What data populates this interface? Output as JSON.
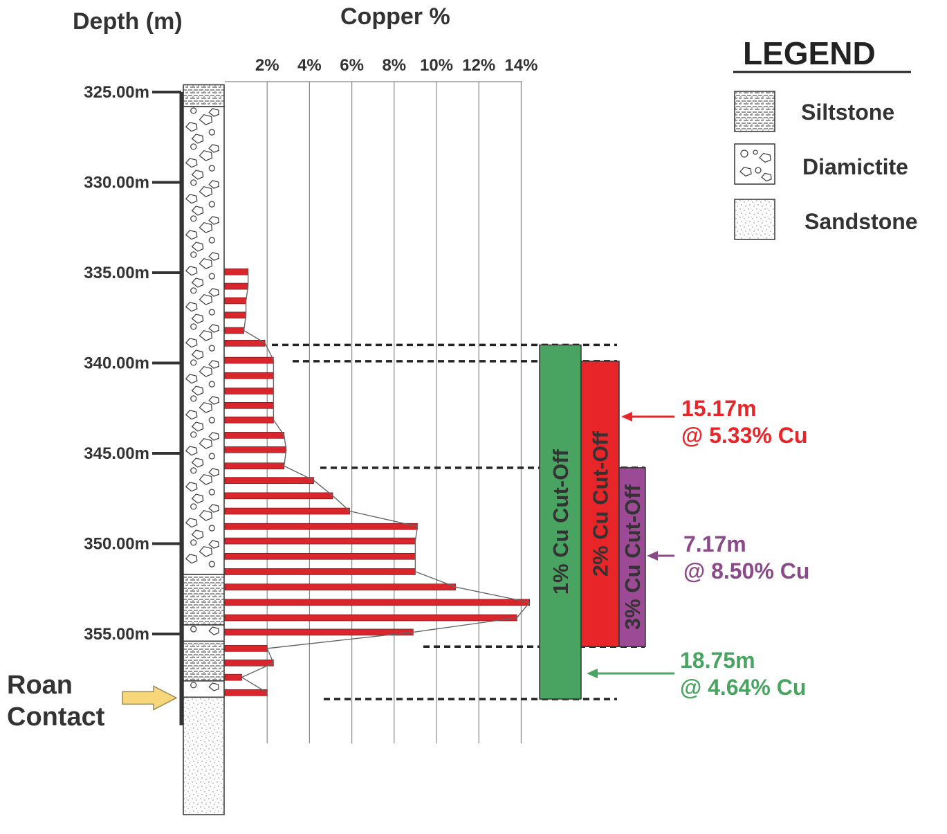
{
  "texts": {
    "depth_title": "Depth (m)",
    "copper_title": "Copper %",
    "legend_title": "LEGEND",
    "roan_line1": "Roan",
    "roan_line2": "Contact"
  },
  "chart_data": {
    "type": "bar",
    "orientation": "horizontal",
    "title": "",
    "xlabel": "Copper %",
    "ylabel": "Depth (m)",
    "xlim": [
      0,
      14
    ],
    "x_ticks": [
      "2%",
      "4%",
      "6%",
      "8%",
      "10%",
      "12%",
      "14%"
    ],
    "ylim": [
      325,
      365
    ],
    "y_ticks": [
      "325.00m",
      "330.00m",
      "335.00m",
      "340.00m",
      "345.00m",
      "350.00m",
      "355.00m"
    ],
    "y_tick_values": [
      325,
      330,
      335,
      340,
      345,
      350,
      355
    ],
    "series": [
      {
        "values": [
          {
            "depth": 334.95,
            "cu": 1.1
          },
          {
            "depth": 335.75,
            "cu": 1.1
          },
          {
            "depth": 336.55,
            "cu": 1.0
          },
          {
            "depth": 337.35,
            "cu": 1.0
          },
          {
            "depth": 338.2,
            "cu": 0.9
          },
          {
            "depth": 338.9,
            "cu": 1.9
          },
          {
            "depth": 339.85,
            "cu": 2.3
          },
          {
            "depth": 340.7,
            "cu": 2.3
          },
          {
            "depth": 341.55,
            "cu": 2.3
          },
          {
            "depth": 342.35,
            "cu": 2.3
          },
          {
            "depth": 343.15,
            "cu": 2.3
          },
          {
            "depth": 344.0,
            "cu": 2.8
          },
          {
            "depth": 344.8,
            "cu": 2.9
          },
          {
            "depth": 345.7,
            "cu": 2.8
          },
          {
            "depth": 346.5,
            "cu": 4.2
          },
          {
            "depth": 347.35,
            "cu": 5.1
          },
          {
            "depth": 348.2,
            "cu": 5.9
          },
          {
            "depth": 349.05,
            "cu": 9.1
          },
          {
            "depth": 349.85,
            "cu": 9.0
          },
          {
            "depth": 350.7,
            "cu": 9.0
          },
          {
            "depth": 351.55,
            "cu": 9.0
          },
          {
            "depth": 352.4,
            "cu": 10.9
          },
          {
            "depth": 353.25,
            "cu": 14.4
          },
          {
            "depth": 354.1,
            "cu": 13.8
          },
          {
            "depth": 354.9,
            "cu": 8.9
          },
          {
            "depth": 355.8,
            "cu": 2.0
          },
          {
            "depth": 356.6,
            "cu": 2.3
          },
          {
            "depth": 357.4,
            "cu": 0.8
          },
          {
            "depth": 358.25,
            "cu": 2.0
          }
        ]
      }
    ],
    "lithology": [
      {
        "rock": "Siltstone",
        "from": 324.6,
        "to": 325.8
      },
      {
        "rock": "Diamictite",
        "from": 325.8,
        "to": 351.7
      },
      {
        "rock": "Siltstone",
        "from": 351.7,
        "to": 354.5
      },
      {
        "rock": "Diamictite",
        "from": 354.5,
        "to": 355.4
      },
      {
        "rock": "Siltstone",
        "from": 355.4,
        "to": 357.6
      },
      {
        "rock": "Diamictite",
        "from": 357.6,
        "to": 358.5
      },
      {
        "rock": "Sandstone",
        "from": 358.5,
        "to": 365.0
      }
    ],
    "legend": {
      "title": "LEGEND",
      "placement": "top-right",
      "entries": [
        "Siltstone",
        "Diamictite",
        "Sandstone"
      ]
    },
    "cutoff_zones": [
      {
        "label": "1% Cu Cut-Off",
        "from": 339.0,
        "to": 358.6,
        "color": "#4aa461",
        "interval_line1": "18.75m",
        "interval_line2": "@ 4.64% Cu",
        "interval_color": "#4aa461"
      },
      {
        "label": "2% Cu Cut-Off",
        "from": 339.9,
        "to": 355.7,
        "color": "#e8262a",
        "interval_line1": "15.17m",
        "interval_line2": "@ 5.33% Cu",
        "interval_color": "#e8262a"
      },
      {
        "label": "3% Cu Cut-Off",
        "from": 345.8,
        "to": 355.7,
        "color": "#9c4a95",
        "interval_line1": "7.17m",
        "interval_line2": "@ 8.50% Cu",
        "interval_color": "#8a4a88"
      }
    ],
    "annotation": "Roan Contact",
    "roan_contact_depth": 358.5,
    "bar_color": "#d9262c",
    "grid": true
  }
}
